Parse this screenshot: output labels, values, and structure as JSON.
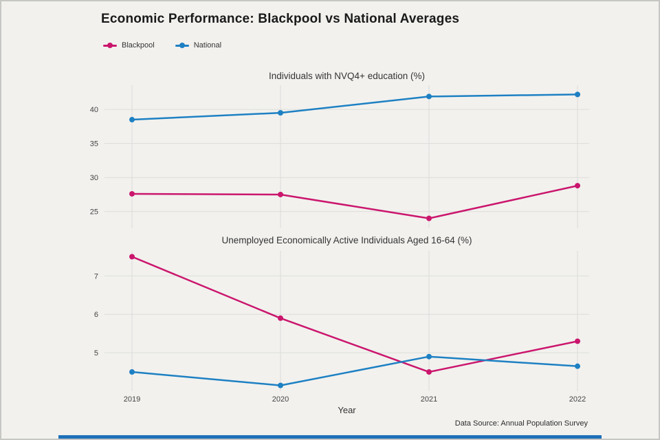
{
  "header": {
    "title": "Economic Performance: Blackpool vs National Averages"
  },
  "legend": {
    "items": [
      {
        "label": "Blackpool",
        "color": "#cb166d"
      },
      {
        "label": "National",
        "color": "#1d80c3"
      }
    ]
  },
  "footer": {
    "x_axis_label": "Year",
    "source_note": "Data Source: Annual Population Survey"
  },
  "style": {
    "background": "#f2f1ee",
    "grid_color": "#dcdcda",
    "tick_color": "#444444",
    "accent_bar_color": "#1d70b8",
    "line_width": 2.5,
    "point_radius": 4
  },
  "chart_data": [
    {
      "type": "line",
      "title": "Individuals with NVQ4+ education (%)",
      "x": [
        2019,
        2020,
        2021,
        2022
      ],
      "series": [
        {
          "name": "Blackpool",
          "color": "#cb166d",
          "values": [
            27.6,
            27.5,
            24.0,
            28.8
          ]
        },
        {
          "name": "National",
          "color": "#1d80c3",
          "values": [
            38.5,
            39.5,
            41.9,
            42.2
          ]
        }
      ],
      "yticks": [
        25,
        30,
        35,
        40
      ],
      "ylim": [
        22.55,
        43.55
      ],
      "grid": true,
      "legend_position": "top-left",
      "xlabel": "Year",
      "ylabel": ""
    },
    {
      "type": "line",
      "title": "Unemployed Economically Active Individuals Aged 16-64 (%)",
      "x": [
        2019,
        2020,
        2021,
        2022
      ],
      "series": [
        {
          "name": "Blackpool",
          "color": "#cb166d",
          "values": [
            7.5,
            5.9,
            4.5,
            5.3
          ]
        },
        {
          "name": "National",
          "color": "#1d80c3",
          "values": [
            4.5,
            4.15,
            4.9,
            4.65
          ]
        }
      ],
      "yticks": [
        5,
        6,
        7
      ],
      "ylim": [
        4.0,
        7.65
      ],
      "grid": true,
      "legend_position": "top-left",
      "xlabel": "Year",
      "ylabel": ""
    }
  ]
}
